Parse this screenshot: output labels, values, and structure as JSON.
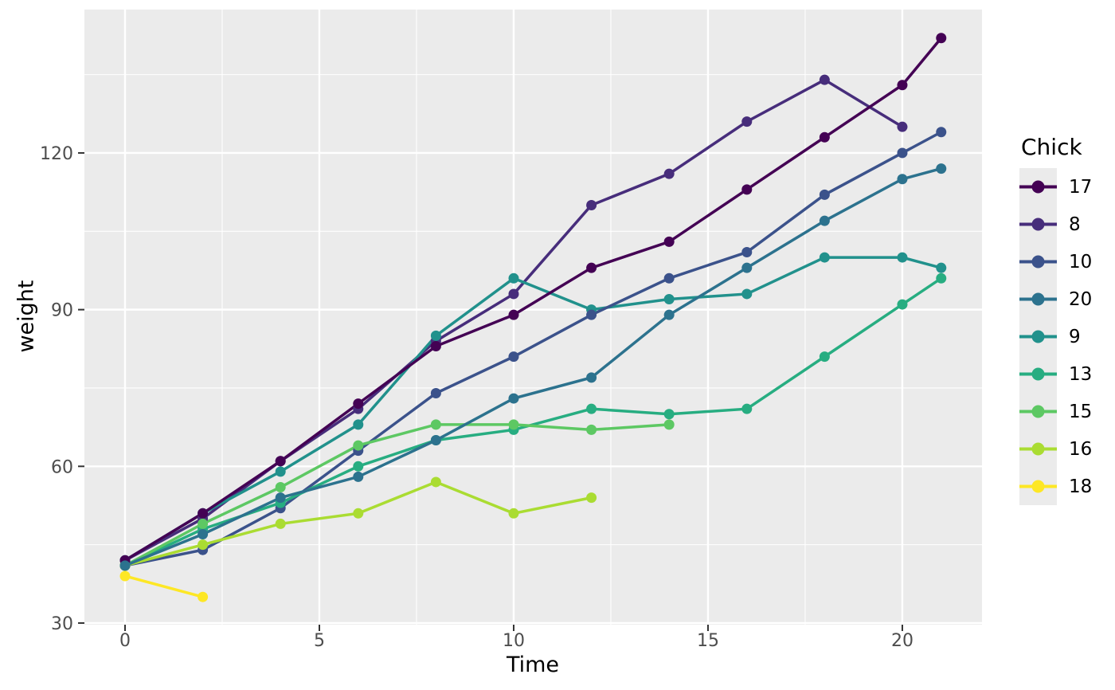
{
  "chart_data": {
    "type": "line",
    "title": "",
    "xlabel": "Time",
    "ylabel": "weight",
    "legend_title": "Chick",
    "legend_position": "right",
    "x_ticks": [
      0,
      5,
      10,
      15,
      20
    ],
    "y_ticks": [
      30,
      60,
      90,
      120
    ],
    "x_minor": [
      2.5,
      7.5,
      12.5,
      17.5
    ],
    "y_minor": [
      45,
      75,
      105,
      135
    ],
    "xlim": [
      -1.045,
      22.05
    ],
    "ylim": [
      29.69,
      147.45
    ],
    "grid": true,
    "panel_bg": "#EBEBEB",
    "grid_color": "#FFFFFF",
    "tick_color": "#333333",
    "tick_label_color": "#4D4D4D",
    "legend_key_bg": "#EBEBEB",
    "draw_order": [
      "8",
      "9",
      "10",
      "13",
      "15",
      "16",
      "17",
      "18",
      "20"
    ],
    "series": [
      {
        "name": "17",
        "color": "#440154",
        "points": [
          [
            0,
            42
          ],
          [
            2,
            51
          ],
          [
            4,
            61
          ],
          [
            6,
            72
          ],
          [
            8,
            83
          ],
          [
            10,
            89
          ],
          [
            12,
            98
          ],
          [
            14,
            103
          ],
          [
            16,
            113
          ],
          [
            18,
            123
          ],
          [
            20,
            133
          ],
          [
            21,
            142
          ]
        ]
      },
      {
        "name": "8",
        "color": "#472D7B",
        "points": [
          [
            0,
            42
          ],
          [
            2,
            50
          ],
          [
            4,
            61
          ],
          [
            6,
            71
          ],
          [
            8,
            84
          ],
          [
            10,
            93
          ],
          [
            12,
            110
          ],
          [
            14,
            116
          ],
          [
            16,
            126
          ],
          [
            18,
            134
          ],
          [
            20,
            125
          ]
        ]
      },
      {
        "name": "10",
        "color": "#3B528B",
        "points": [
          [
            0,
            41
          ],
          [
            2,
            44
          ],
          [
            4,
            52
          ],
          [
            6,
            63
          ],
          [
            8,
            74
          ],
          [
            10,
            81
          ],
          [
            12,
            89
          ],
          [
            14,
            96
          ],
          [
            16,
            101
          ],
          [
            18,
            112
          ],
          [
            20,
            120
          ],
          [
            21,
            124
          ]
        ]
      },
      {
        "name": "20",
        "color": "#2C728E",
        "points": [
          [
            0,
            41
          ],
          [
            2,
            47
          ],
          [
            4,
            54
          ],
          [
            6,
            58
          ],
          [
            8,
            65
          ],
          [
            10,
            73
          ],
          [
            12,
            77
          ],
          [
            14,
            89
          ],
          [
            16,
            98
          ],
          [
            18,
            107
          ],
          [
            20,
            115
          ],
          [
            21,
            117
          ]
        ]
      },
      {
        "name": "9",
        "color": "#21918C",
        "points": [
          [
            0,
            42
          ],
          [
            2,
            51
          ],
          [
            4,
            59
          ],
          [
            6,
            68
          ],
          [
            8,
            85
          ],
          [
            10,
            96
          ],
          [
            12,
            90
          ],
          [
            14,
            92
          ],
          [
            16,
            93
          ],
          [
            18,
            100
          ],
          [
            20,
            100
          ],
          [
            21,
            98
          ]
        ]
      },
      {
        "name": "13",
        "color": "#27AD81",
        "points": [
          [
            0,
            41
          ],
          [
            2,
            48
          ],
          [
            4,
            53
          ],
          [
            6,
            60
          ],
          [
            8,
            65
          ],
          [
            10,
            67
          ],
          [
            12,
            71
          ],
          [
            14,
            70
          ],
          [
            16,
            71
          ],
          [
            18,
            81
          ],
          [
            20,
            91
          ],
          [
            21,
            96
          ]
        ]
      },
      {
        "name": "15",
        "color": "#5DC863",
        "points": [
          [
            0,
            41
          ],
          [
            2,
            49
          ],
          [
            4,
            56
          ],
          [
            6,
            64
          ],
          [
            8,
            68
          ],
          [
            10,
            68
          ],
          [
            12,
            67
          ],
          [
            14,
            68
          ]
        ]
      },
      {
        "name": "16",
        "color": "#AADC32",
        "points": [
          [
            0,
            41
          ],
          [
            2,
            45
          ],
          [
            4,
            49
          ],
          [
            6,
            51
          ],
          [
            8,
            57
          ],
          [
            10,
            51
          ],
          [
            12,
            54
          ]
        ]
      },
      {
        "name": "18",
        "color": "#FDE725",
        "points": [
          [
            0,
            39
          ],
          [
            2,
            35
          ]
        ]
      }
    ]
  }
}
